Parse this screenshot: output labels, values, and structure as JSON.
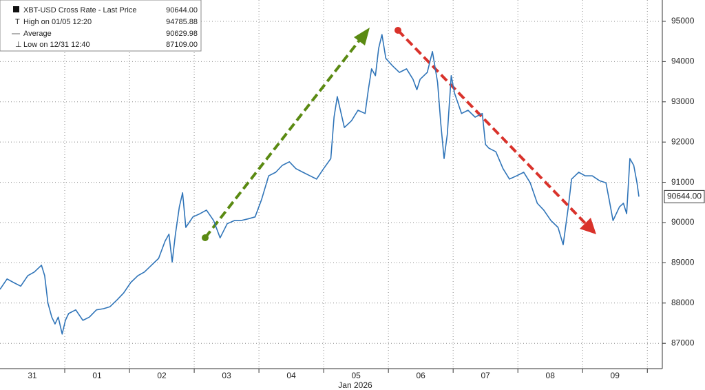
{
  "chart_data": {
    "type": "line",
    "legend": [
      {
        "name": "XBT-USD Cross Rate - Last Price",
        "value": "90644.00"
      },
      {
        "name": "High on 01/05 12:20",
        "value": "94785.88"
      },
      {
        "name": "Average",
        "value": "90629.98"
      },
      {
        "name": "Low on 12/31 12:40",
        "value": "87109.00"
      }
    ],
    "x_axis_label": "Jan 2026",
    "x": [
      0,
      0.11,
      0.21,
      0.32,
      0.43,
      0.53,
      0.64,
      0.69,
      0.74,
      0.8,
      0.85,
      0.9,
      0.96,
      1.01,
      1.06,
      1.17,
      1.28,
      1.38,
      1.49,
      1.6,
      1.7,
      1.81,
      1.91,
      2.02,
      2.13,
      2.23,
      2.34,
      2.45,
      2.55,
      2.61,
      2.66,
      2.71,
      2.77,
      2.82,
      2.87,
      2.98,
      3.09,
      3.19,
      3.3,
      3.4,
      3.51,
      3.62,
      3.72,
      3.83,
      3.94,
      4.04,
      4.15,
      4.26,
      4.36,
      4.47,
      4.57,
      4.68,
      4.79,
      4.89,
      5,
      5.11,
      5.16,
      5.21,
      5.27,
      5.32,
      5.43,
      5.53,
      5.64,
      5.69,
      5.74,
      5.8,
      5.85,
      5.9,
      5.96,
      6.06,
      6.17,
      6.28,
      6.38,
      6.44,
      6.49,
      6.6,
      6.68,
      6.76,
      6.81,
      6.86,
      6.91,
      6.97,
      7.02,
      7.13,
      7.23,
      7.34,
      7.45,
      7.5,
      7.55,
      7.66,
      7.77,
      7.87,
      7.98,
      8.09,
      8.19,
      8.3,
      8.4,
      8.51,
      8.62,
      8.7,
      8.78,
      8.83,
      8.94,
      9.04,
      9.15,
      9.26,
      9.36,
      9.41,
      9.47,
      9.57,
      9.63,
      9.68,
      9.73,
      9.79,
      9.84,
      9.87
    ],
    "series": [
      {
        "name": "XBT-USD Cross Rate",
        "color": "#2f74b8",
        "values": [
          88340,
          88600,
          88510,
          88420,
          88680,
          88770,
          88940,
          88680,
          88000,
          87650,
          87480,
          87650,
          87230,
          87570,
          87740,
          87830,
          87570,
          87650,
          87830,
          87860,
          87910,
          88080,
          88250,
          88510,
          88680,
          88770,
          88940,
          89110,
          89540,
          89710,
          89020,
          89710,
          90390,
          90740,
          89880,
          90140,
          90220,
          90310,
          90050,
          89620,
          89970,
          90050,
          90050,
          90090,
          90140,
          90570,
          91160,
          91250,
          91420,
          91510,
          91340,
          91250,
          91160,
          91080,
          91340,
          91590,
          92620,
          93130,
          92710,
          92360,
          92530,
          92790,
          92710,
          93300,
          93820,
          93650,
          94330,
          94670,
          94080,
          93900,
          93730,
          93820,
          93560,
          93300,
          93560,
          93730,
          94250,
          93480,
          92450,
          91590,
          92190,
          93650,
          93220,
          92710,
          92790,
          92620,
          92710,
          91940,
          91850,
          91760,
          91340,
          91080,
          91160,
          91250,
          90990,
          90480,
          90310,
          90050,
          89880,
          89450,
          90390,
          91080,
          91250,
          91160,
          91160,
          91040,
          90990,
          90570,
          90050,
          90390,
          90480,
          90220,
          91590,
          91420,
          90990,
          90644
        ]
      }
    ],
    "xlim": [
      0,
      10.21
    ],
    "xticks": [
      {
        "value": 0.5,
        "label": "31"
      },
      {
        "value": 1.5,
        "label": "01"
      },
      {
        "value": 2.5,
        "label": "02"
      },
      {
        "value": 3.5,
        "label": "03"
      },
      {
        "value": 4.5,
        "label": "04"
      },
      {
        "value": 5.5,
        "label": "05"
      },
      {
        "value": 6.5,
        "label": "06"
      },
      {
        "value": 7.5,
        "label": "07"
      },
      {
        "value": 8.5,
        "label": "08"
      },
      {
        "value": 9.5,
        "label": "09"
      }
    ],
    "xgrid": [
      1,
      2,
      3,
      4,
      5,
      6,
      7,
      8,
      9,
      10
    ],
    "ylim": [
      86370,
      95530
    ],
    "yticks": [
      87000,
      88000,
      89000,
      90000,
      91000,
      92000,
      93000,
      94000,
      95000
    ],
    "grid": true
  }
}
